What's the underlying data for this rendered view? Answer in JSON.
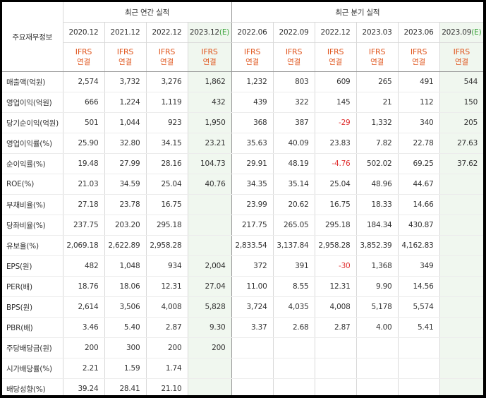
{
  "header": {
    "corner_label": "주요재무정보",
    "annual_group": "최근 연간 실적",
    "quarterly_group": "최근 분기 실적",
    "estimate_mark": "(E)",
    "ifrs_top": "IFRS",
    "ifrs_bottom": "연결",
    "annual_periods": [
      "2020.12",
      "2021.12",
      "2022.12",
      "2023.12"
    ],
    "quarterly_periods": [
      "2022.06",
      "2022.09",
      "2022.12",
      "2023.03",
      "2023.06",
      "2023.09"
    ]
  },
  "rows": [
    {
      "label": "매출액(억원)",
      "values": [
        "2,574",
        "3,732",
        "3,276",
        "1,862",
        "1,232",
        "803",
        "609",
        "265",
        "491",
        "544"
      ]
    },
    {
      "label": "영업이익(억원)",
      "values": [
        "666",
        "1,224",
        "1,119",
        "432",
        "439",
        "322",
        "145",
        "21",
        "112",
        "150"
      ]
    },
    {
      "label": "당기순이익(억원)",
      "values": [
        "501",
        "1,044",
        "923",
        "1,950",
        "368",
        "387",
        "-29",
        "1,332",
        "340",
        "205"
      ]
    },
    {
      "label": "영업이익률(%)",
      "values": [
        "25.90",
        "32.80",
        "34.15",
        "23.21",
        "35.63",
        "40.09",
        "23.83",
        "7.82",
        "22.78",
        "27.63"
      ]
    },
    {
      "label": "순이익률(%)",
      "values": [
        "19.48",
        "27.99",
        "28.16",
        "104.73",
        "29.91",
        "48.19",
        "-4.76",
        "502.02",
        "69.25",
        "37.62"
      ]
    },
    {
      "label": "ROE(%)",
      "values": [
        "21.03",
        "34.59",
        "25.04",
        "40.76",
        "34.35",
        "35.14",
        "25.04",
        "48.96",
        "44.67",
        ""
      ]
    },
    {
      "label": "부채비율(%)",
      "values": [
        "27.18",
        "23.78",
        "16.75",
        "",
        "23.99",
        "20.62",
        "16.75",
        "18.33",
        "14.66",
        ""
      ]
    },
    {
      "label": "당좌비율(%)",
      "values": [
        "237.75",
        "203.20",
        "295.18",
        "",
        "217.75",
        "265.05",
        "295.18",
        "184.34",
        "430.87",
        ""
      ]
    },
    {
      "label": "유보율(%)",
      "values": [
        "2,069.18",
        "2,622.89",
        "2,958.28",
        "",
        "2,833.54",
        "3,137.84",
        "2,958.28",
        "3,852.39",
        "4,162.83",
        ""
      ]
    },
    {
      "label": "EPS(원)",
      "values": [
        "482",
        "1,048",
        "934",
        "2,004",
        "372",
        "391",
        "-30",
        "1,368",
        "349",
        ""
      ]
    },
    {
      "label": "PER(배)",
      "values": [
        "18.76",
        "18.06",
        "12.31",
        "27.04",
        "11.00",
        "8.55",
        "12.31",
        "9.90",
        "14.56",
        ""
      ]
    },
    {
      "label": "BPS(원)",
      "values": [
        "2,614",
        "3,506",
        "4,008",
        "5,828",
        "3,724",
        "4,035",
        "4,008",
        "5,178",
        "5,574",
        ""
      ]
    },
    {
      "label": "PBR(배)",
      "values": [
        "3.46",
        "5.40",
        "2.87",
        "9.30",
        "3.37",
        "2.68",
        "2.87",
        "4.00",
        "5.41",
        ""
      ]
    },
    {
      "label": "주당배당금(원)",
      "values": [
        "200",
        "300",
        "200",
        "200",
        "",
        "",
        "",
        "",
        "",
        ""
      ]
    },
    {
      "label": "시가배당률(%)",
      "values": [
        "2.21",
        "1.59",
        "1.74",
        "",
        "",
        "",
        "",
        "",
        "",
        ""
      ]
    },
    {
      "label": "배당성향(%)",
      "values": [
        "39.24",
        "28.41",
        "21.10",
        "",
        "",
        "",
        "",
        "",
        "",
        ""
      ]
    }
  ],
  "colors": {
    "ifrs_text": "#e0561e",
    "estimate_bg": "#f0f7ef",
    "negative": "#e03030",
    "estimate_mark": "#3aa33a"
  }
}
